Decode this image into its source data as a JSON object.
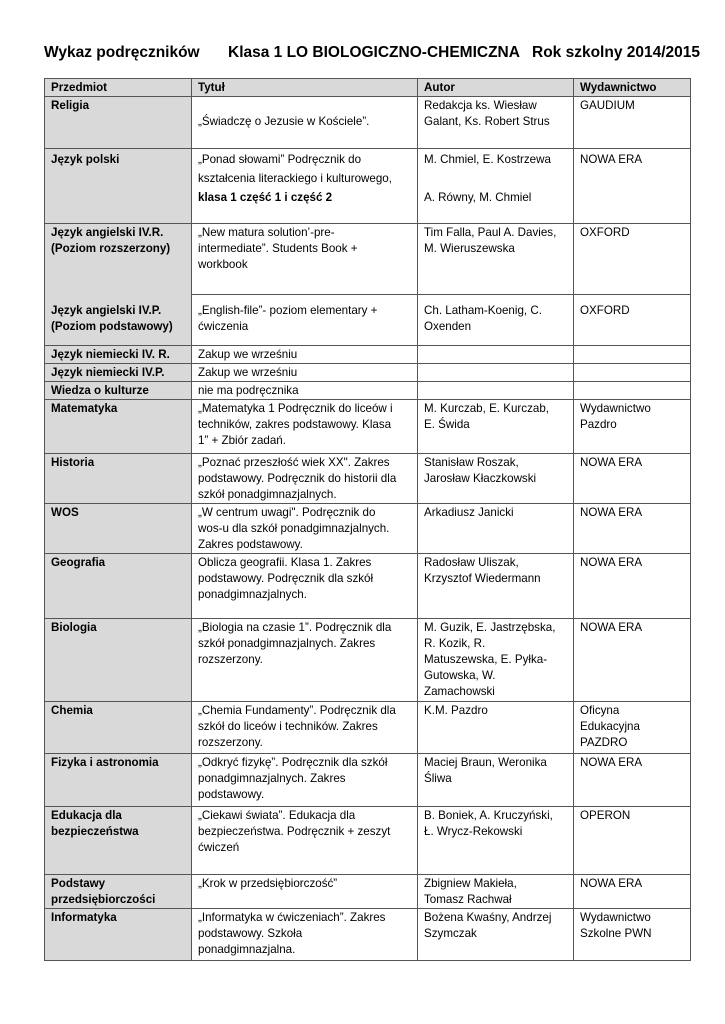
{
  "header": {
    "title": "Wykaz podręczników",
    "class": "Klasa 1 LO BIOLOGICZNO-CHEMICZNA",
    "year": "Rok szkolny 2014/2015"
  },
  "table": {
    "columns": [
      "Przedmiot",
      "Tytuł",
      "Autor",
      "Wydawnictwo"
    ],
    "rows": [
      {
        "subject": [
          "Religia"
        ],
        "title": [
          "",
          "„Świadczę o Jezusie w Kościele”."
        ],
        "author": [
          "Redakcja ks. Wiesław",
          "Galant, Ks. Robert Strus"
        ],
        "publisher": [
          "GAUDIUM"
        ]
      },
      {
        "subject": [
          "Język polski"
        ],
        "title": [
          "„Ponad słowami”  Podręcznik do",
          "kształcenia literackiego i kulturowego,",
          "klasa 1 część 1 i część 2"
        ],
        "author": [
          "M. Chmiel, E. Kostrzewa",
          "",
          "A. Równy, M. Chmiel"
        ],
        "publisher": [
          "NOWA ERA"
        ]
      },
      {
        "subject": [
          "Język  angielski IV.R.",
          "(Poziom rozszerzony)"
        ],
        "title": [
          "„New matura solution’-pre-",
          "intermediate”. Students Book +",
          "workbook"
        ],
        "author": [
          "Tim Falla, Paul A. Davies,",
          "M. Wieruszewska"
        ],
        "publisher": [
          "OXFORD"
        ]
      },
      {
        "subject": [
          "Język angielski IV.P.",
          "(Poziom podstawowy)"
        ],
        "title": [
          "„English-file”- poziom elementary +",
          "ćwiczenia"
        ],
        "author": [
          "Ch. Latham-Koenig, C.",
          "Oxenden"
        ],
        "publisher": [
          "OXFORD"
        ]
      },
      {
        "subject": [
          "Język niemiecki IV. R."
        ],
        "title": [
          "Zakup we wrześniu"
        ],
        "author": [],
        "publisher": []
      },
      {
        "subject": [
          "Język niemiecki IV.P."
        ],
        "title": [
          "Zakup we wrześniu"
        ],
        "author": [],
        "publisher": []
      },
      {
        "subject": [
          "Wiedza o kulturze"
        ],
        "title": [
          "nie ma podręcznika"
        ],
        "author": [],
        "publisher": []
      },
      {
        "subject": [
          "Matematyka"
        ],
        "title": [
          "„Matematyka 1 Podręcznik do liceów i",
          "techników, zakres podstawowy. Klasa",
          "1” + Zbiór zadań."
        ],
        "author": [
          "M. Kurczab, E. Kurczab,",
          "E. Świda"
        ],
        "publisher": [
          "Wydawnictwo",
          "Pazdro"
        ]
      },
      {
        "subject": [
          "Historia"
        ],
        "title": [
          "„Poznać przeszłość wiek XX\". Zakres",
          "podstawowy. Podręcznik do historii dla",
          "szkół ponadgimnazjalnych."
        ],
        "author": [
          "Stanisław Roszak,",
          "Jarosław Kłaczkowski"
        ],
        "publisher": [
          "NOWA ERA"
        ]
      },
      {
        "subject": [
          "WOS"
        ],
        "title": [
          "„W centrum uwagi\". Podręcznik do",
          "wos-u dla szkół ponadgimnazjalnych.",
          "Zakres podstawowy."
        ],
        "author": [
          "Arkadiusz Janicki"
        ],
        "publisher": [
          "NOWA ERA"
        ]
      },
      {
        "subject": [
          "Geografia"
        ],
        "title": [
          "Oblicza geografii. Klasa 1. Zakres",
          "podstawowy. Podręcznik dla szkół",
          "ponadgimnazjalnych."
        ],
        "author": [
          "Radosław Uliszak,",
          "Krzysztof Wiedermann"
        ],
        "publisher": [
          "NOWA ERA"
        ]
      },
      {
        "subject": [
          "Biologia"
        ],
        "title": [
          "„Biologia na czasie 1”. Podręcznik dla",
          "szkół ponadgimnazjalnych. Zakres",
          "rozszerzony."
        ],
        "author": [
          "M. Guzik, E. Jastrzębska,",
          "R.  Kozik, R.",
          "Matuszewska, E. Pyłka-",
          "Gutowska, W.",
          "Zamachowski"
        ],
        "publisher": [
          "NOWA ERA"
        ]
      },
      {
        "subject": [
          "Chemia"
        ],
        "title": [
          "„Chemia Fundamenty”. Podręcznik dla",
          "szkół do liceów i techników. Zakres",
          "rozszerzony."
        ],
        "author": [
          "K.M. Pazdro"
        ],
        "publisher": [
          "Oficyna",
          "Edukacyjna",
          "PAZDRO"
        ]
      },
      {
        "subject": [
          "Fizyka i astronomia"
        ],
        "title": [
          "„Odkryć fizykę”. Podręcznik dla szkół",
          "ponadgimnazjalnych. Zakres",
          "podstawowy."
        ],
        "author": [
          "Maciej Braun, Weronika",
          "Śliwa"
        ],
        "publisher": [
          "NOWA ERA"
        ]
      },
      {
        "subject": [
          "Edukacja dla",
          "bezpieczeństwa"
        ],
        "title": [
          "„Ciekawi świata”. Edukacja dla",
          "bezpieczeństwa. Podręcznik + zeszyt",
          "ćwiczeń"
        ],
        "author": [
          "B. Boniek, A. Kruczyński,",
          "Ł. Wrycz-Rekowski"
        ],
        "publisher": [
          "OPERON"
        ]
      },
      {
        "subject": [
          "Podstawy",
          "przedsiębiorczości"
        ],
        "title": [
          "„Krok w przedsiębiorczość”"
        ],
        "author": [
          "Zbigniew Makieła,",
          "Tomasz Rachwał"
        ],
        "publisher": [
          "NOWA ERA"
        ]
      },
      {
        "subject": [
          "Informatyka"
        ],
        "title": [
          "„Informatyka w ćwiczeniach”. Zakres",
          "podstawowy. Szkoła",
          "ponadgimnazjalna."
        ],
        "author": [
          "Bożena Kwaśny, Andrzej",
          "Szymczak"
        ],
        "publisher": [
          "Wydawnictwo",
          "Szkolne PWN"
        ]
      }
    ]
  }
}
